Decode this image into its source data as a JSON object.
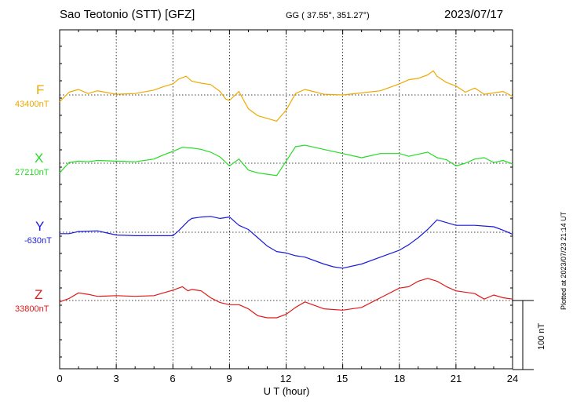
{
  "header": {
    "station": "Sao Teotonio (STT)  [GFZ]",
    "coords": "GG ( 37.55°, 351.27°)",
    "date": "2023/07/17"
  },
  "footer": {
    "xlabel": "U T (hour)",
    "plotted": "Plotted at 2023/07/23 21:14 UT",
    "scale": "100 nT"
  },
  "chart_data": {
    "type": "line",
    "xlabel": "U T (hour)",
    "xlim": [
      0,
      24
    ],
    "xticks": [
      "0",
      "3",
      "6",
      "9",
      "12",
      "15",
      "18",
      "21",
      "24"
    ],
    "scale_bar_nT": 100,
    "grid": true,
    "series": [
      {
        "name": "F",
        "baseline": "43400nT",
        "color": "#f0a800",
        "x": [
          0,
          0.5,
          1,
          1.5,
          2,
          3,
          4,
          5,
          5.5,
          6,
          6.3,
          6.7,
          7,
          7.5,
          8,
          8.5,
          8.8,
          9,
          9.5,
          10,
          10.5,
          11,
          11.5,
          12,
          12.5,
          13,
          14,
          15,
          16,
          17,
          18,
          18.5,
          19,
          19.5,
          19.8,
          20,
          20.5,
          21,
          21.5,
          22,
          22.5,
          23,
          23.5,
          24
        ],
        "y": [
          -10,
          4,
          8,
          2,
          6,
          1,
          2,
          7,
          12,
          16,
          23,
          27,
          20,
          17,
          15,
          5,
          -6,
          -8,
          5,
          -20,
          -30,
          -34,
          -38,
          -22,
          2,
          8,
          1,
          0,
          3,
          6,
          16,
          22,
          24,
          29,
          35,
          27,
          18,
          13,
          4,
          10,
          1,
          3,
          5,
          -2
        ]
      },
      {
        "name": "X",
        "baseline": "27210nT",
        "color": "#22dd22",
        "x": [
          0,
          0.5,
          1,
          1.5,
          2,
          3,
          4,
          5,
          5.5,
          6,
          6.5,
          7,
          7.5,
          8,
          8.5,
          9,
          9.5,
          10,
          10.5,
          11,
          11.5,
          12,
          12.5,
          13,
          14,
          15,
          16,
          17,
          18,
          18.5,
          19,
          19.5,
          20,
          20.5,
          21,
          21.5,
          22,
          22.5,
          23,
          23.5,
          24
        ],
        "y": [
          -14,
          1,
          3,
          2,
          4,
          3,
          2,
          6,
          12,
          17,
          23,
          22,
          20,
          16,
          9,
          -4,
          6,
          -10,
          -14,
          -16,
          -18,
          3,
          24,
          26,
          20,
          14,
          8,
          14,
          14,
          10,
          13,
          16,
          8,
          5,
          -4,
          0,
          6,
          8,
          1,
          4,
          -1
        ]
      },
      {
        "name": "Y",
        "baseline": "-630nT",
        "color": "#1a1adc",
        "x": [
          0,
          0.5,
          1,
          2,
          3,
          4,
          5,
          6,
          6.3,
          6.8,
          7,
          7.5,
          8,
          8.5,
          9,
          9.5,
          10,
          10.5,
          11,
          11.5,
          12,
          12.5,
          13,
          14,
          14.5,
          15,
          16,
          17,
          18,
          18.5,
          19,
          19.5,
          20,
          20.5,
          21,
          22,
          22.5,
          23,
          23.5,
          24
        ],
        "y": [
          -2,
          -2,
          1,
          2,
          -4,
          -5,
          -5,
          -5,
          2,
          16,
          20,
          22,
          23,
          20,
          22,
          10,
          4,
          -8,
          -20,
          -28,
          -30,
          -34,
          -36,
          -46,
          -50,
          -52,
          -46,
          -36,
          -26,
          -18,
          -8,
          4,
          18,
          14,
          10,
          10,
          9,
          8,
          3,
          -3
        ]
      },
      {
        "name": "Z",
        "baseline": "33800nT",
        "color": "#e01818",
        "x": [
          0,
          0.5,
          1,
          1.5,
          2,
          3,
          4,
          5,
          5.5,
          6,
          6.5,
          6.8,
          7,
          7.5,
          8,
          8.5,
          9,
          9.5,
          10,
          10.5,
          11,
          11.5,
          12,
          12.5,
          13,
          14,
          15,
          16,
          17,
          18,
          18.5,
          19,
          19.5,
          20,
          20.5,
          21,
          22,
          22.5,
          23,
          23.5,
          24
        ],
        "y": [
          -2,
          3,
          11,
          9,
          6,
          7,
          6,
          7,
          11,
          15,
          20,
          14,
          16,
          14,
          4,
          -3,
          -6,
          -6,
          -12,
          -22,
          -25,
          -25,
          -20,
          -10,
          -2,
          -12,
          -14,
          -10,
          4,
          18,
          20,
          28,
          32,
          28,
          20,
          14,
          10,
          2,
          8,
          4,
          2
        ]
      }
    ]
  }
}
